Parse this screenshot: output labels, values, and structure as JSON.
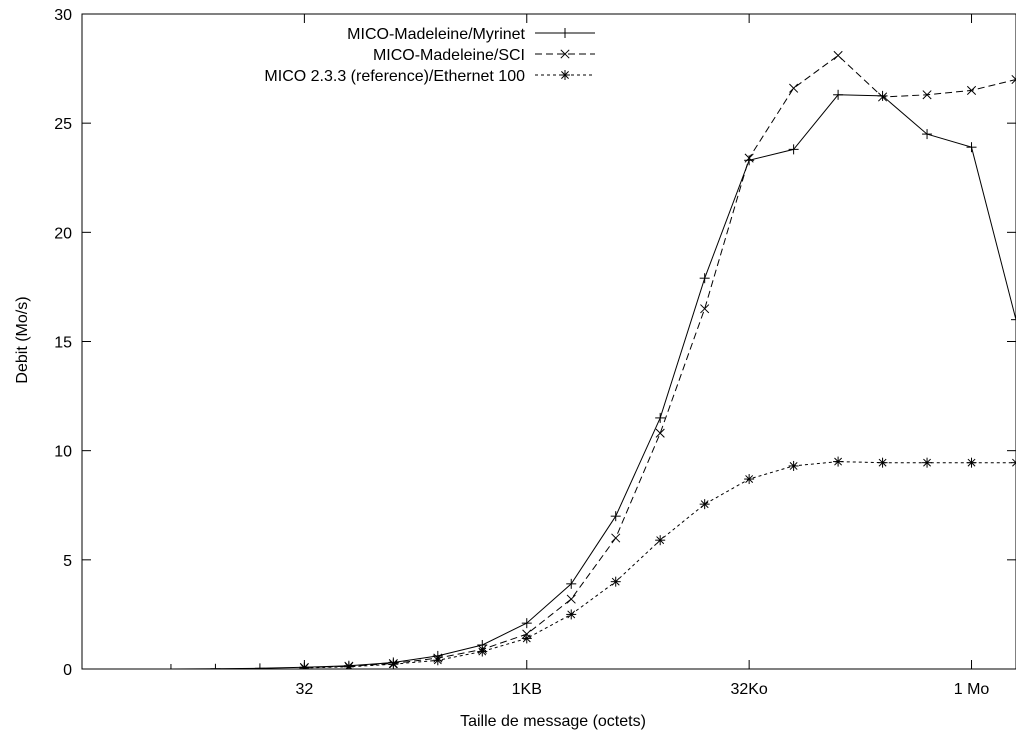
{
  "chart_data": {
    "type": "line",
    "title": "",
    "xlabel": "Taille de message (octets)",
    "ylabel": "Debit (Mo/s)",
    "x_scale": "log2",
    "x_ticks": [
      {
        "value": 32,
        "label": "32"
      },
      {
        "value": 1024,
        "label": "1KB"
      },
      {
        "value": 32768,
        "label": "32Ko"
      },
      {
        "value": 1048576,
        "label": "1 Mo"
      }
    ],
    "y_ticks": [
      0,
      5,
      10,
      15,
      20,
      25,
      30
    ],
    "ylim": [
      0,
      30
    ],
    "xlim": [
      1,
      2097152
    ],
    "grid": false,
    "legend_position": "top-right",
    "series": [
      {
        "name": "MICO-Madeleine/Myrinet",
        "marker": "plus",
        "dash": "solid",
        "x": [
          4,
          8,
          16,
          32,
          64,
          128,
          256,
          512,
          1024,
          2048,
          4096,
          8192,
          16384,
          32768,
          65536,
          131072,
          262144,
          524288,
          1048576,
          2097152
        ],
        "y": [
          0.0,
          0.01,
          0.03,
          0.08,
          0.15,
          0.3,
          0.6,
          1.1,
          2.1,
          3.9,
          7.0,
          11.5,
          17.9,
          23.3,
          23.8,
          26.3,
          26.25,
          24.5,
          23.9,
          16.0
        ]
      },
      {
        "name": "MICO-Madeleine/SCI",
        "marker": "cross",
        "dash": "dashed",
        "x": [
          32,
          64,
          128,
          256,
          512,
          1024,
          2048,
          4096,
          8192,
          16384,
          32768,
          65536,
          131072,
          262144,
          524288,
          1048576,
          2097152
        ],
        "y": [
          0.07,
          0.13,
          0.25,
          0.5,
          0.9,
          1.6,
          3.2,
          6.0,
          10.8,
          16.5,
          23.4,
          26.6,
          28.1,
          26.2,
          26.3,
          26.5,
          27.0
        ]
      },
      {
        "name": "MICO 2.3.3 (reference)/Ethernet 100",
        "marker": "star",
        "dash": "dotted",
        "x": [
          32,
          64,
          128,
          256,
          512,
          1024,
          2048,
          4096,
          8192,
          16384,
          32768,
          65536,
          131072,
          262144,
          524288,
          1048576,
          2097152
        ],
        "y": [
          0.05,
          0.1,
          0.22,
          0.4,
          0.8,
          1.4,
          2.5,
          4.0,
          5.9,
          7.55,
          8.7,
          9.3,
          9.5,
          9.45,
          9.45,
          9.45,
          9.45
        ]
      }
    ]
  }
}
